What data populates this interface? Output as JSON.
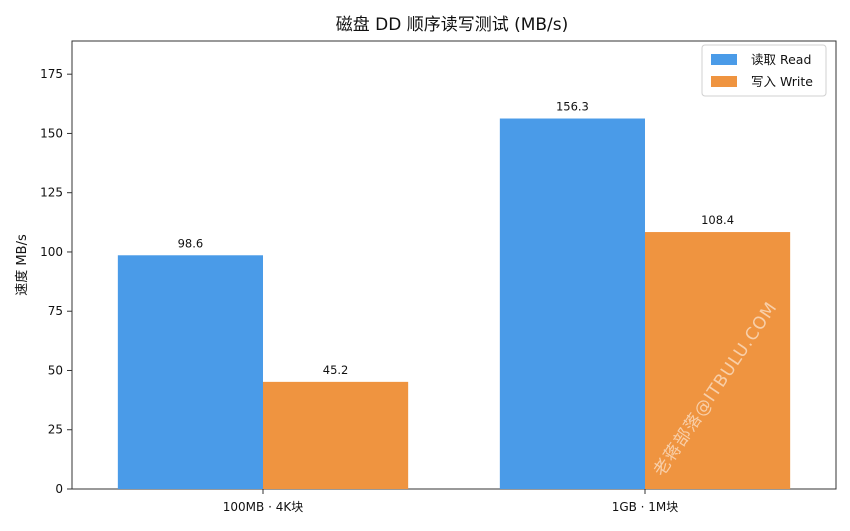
{
  "chart_data": {
    "type": "bar",
    "title": "磁盘 DD 顺序读写测试 (MB/s)",
    "xlabel": "",
    "ylabel": "速度 MB/s",
    "categories": [
      "100MB · 4K块",
      "1GB · 1M块"
    ],
    "series": [
      {
        "name": "读取 Read",
        "values": [
          98.6,
          156.3
        ],
        "color": "#4a9be8"
      },
      {
        "name": "写入 Write",
        "values": [
          45.2,
          108.4
        ],
        "color": "#ef9440"
      }
    ],
    "value_labels": [
      [
        "98.6",
        "156.3"
      ],
      [
        "45.2",
        "108.4"
      ]
    ],
    "ylim": [
      0,
      189
    ],
    "yticks": [
      0,
      25,
      50,
      75,
      100,
      125,
      150,
      175
    ],
    "grid": false,
    "legend_position": "top-right"
  },
  "watermark": "老蒋部落@ITBULU.COM"
}
